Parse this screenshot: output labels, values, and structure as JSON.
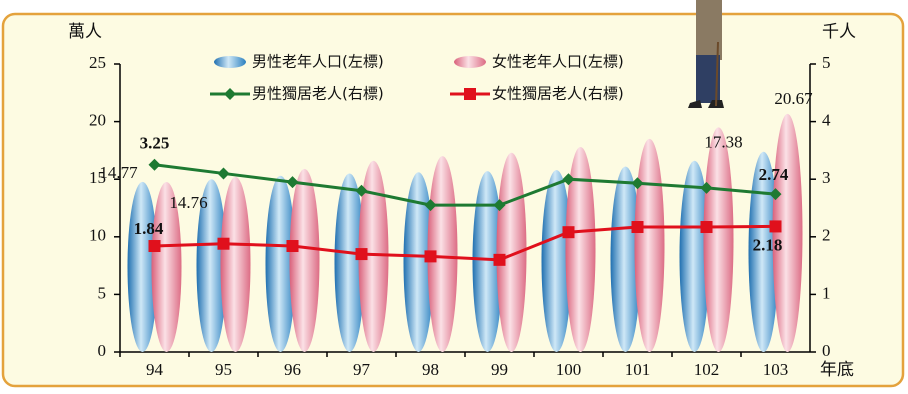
{
  "chart_data": {
    "type": "bar-line",
    "y_label": "萬人",
    "y2_label": "千人",
    "x_label": "年底",
    "categories": [
      "94",
      "95",
      "96",
      "97",
      "98",
      "99",
      "100",
      "101",
      "102",
      "103"
    ],
    "ylim": [
      0,
      25
    ],
    "yticks": [
      0,
      5,
      10,
      15,
      20,
      25
    ],
    "y2lim": [
      0,
      5
    ],
    "y2ticks": [
      0,
      1,
      2,
      3,
      4,
      5
    ],
    "series": [
      {
        "name": "男性老年人口(左標)",
        "type": "bar",
        "color": "#3d8fc9",
        "values": [
          14.77,
          15.0,
          15.3,
          15.5,
          15.6,
          15.7,
          15.8,
          16.1,
          16.6,
          17.38
        ],
        "value_labels": [
          "14.77",
          null,
          null,
          null,
          null,
          null,
          null,
          null,
          null,
          "17.38"
        ]
      },
      {
        "name": "女性老年人口(左標)",
        "type": "bar",
        "color": "#e88a9c",
        "values": [
          14.76,
          15.2,
          15.9,
          16.6,
          17.0,
          17.3,
          17.8,
          18.5,
          19.5,
          20.67
        ],
        "value_labels": [
          "14.76",
          null,
          null,
          null,
          null,
          null,
          null,
          null,
          null,
          "20.67"
        ]
      },
      {
        "name": "男性獨居老人(右標)",
        "type": "line",
        "axis": "y2",
        "color": "#1e7a32",
        "values": [
          3.25,
          3.1,
          2.95,
          2.8,
          2.55,
          2.55,
          3.0,
          2.93,
          2.85,
          2.74
        ],
        "value_labels": [
          "3.25",
          null,
          null,
          null,
          null,
          null,
          null,
          null,
          null,
          "2.74"
        ]
      },
      {
        "name": "女性獨居老人(右標)",
        "type": "line",
        "axis": "y2",
        "color": "#e0101c",
        "values": [
          1.84,
          1.88,
          1.84,
          1.7,
          1.66,
          1.6,
          2.08,
          2.17,
          2.17,
          2.18
        ],
        "value_labels": [
          "1.84",
          null,
          null,
          null,
          null,
          null,
          null,
          null,
          null,
          "2.18"
        ]
      }
    ]
  }
}
